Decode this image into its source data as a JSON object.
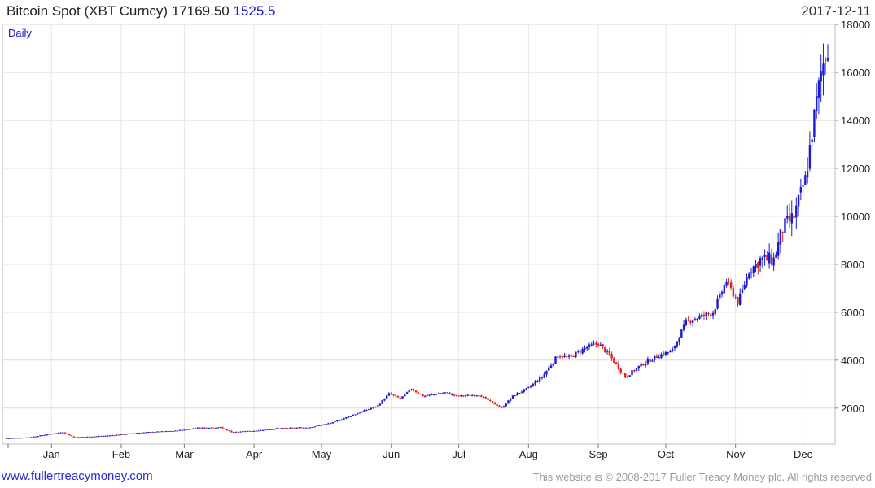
{
  "header": {
    "title": "Bitcoin Spot (XBT Curncy)",
    "price": "17169.50",
    "change": "1525.5",
    "date": "2017-12-11"
  },
  "footer": {
    "site": "www.fullertreacymoney.com",
    "copyright": "This website is © 2008-2017 Fuller Treacy Money plc. All rights reserved"
  },
  "colors": {
    "up": "#1a1ad0",
    "down": "#e02020",
    "grid": "#d9d9d9"
  },
  "chart_data": {
    "type": "candlestick",
    "period_label": "Daily",
    "x_labels": [
      "Jan",
      "Feb",
      "Mar",
      "Apr",
      "May",
      "Jun",
      "Jul",
      "Aug",
      "Sep",
      "Oct",
      "Nov",
      "Dec"
    ],
    "y_ticks": [
      2000,
      4000,
      6000,
      8000,
      10000,
      12000,
      14000,
      16000,
      18000
    ],
    "ylim": [
      500,
      18000
    ],
    "y_axis_side": "right",
    "grid": true,
    "series": [
      {
        "date_range": [
          "2016-12-12",
          "2017-12-11"
        ],
        "approx_close_path": [
          [
            0,
            740
          ],
          [
            10,
            780
          ],
          [
            20,
            930
          ],
          [
            25,
            1000
          ],
          [
            30,
            780
          ],
          [
            35,
            800
          ],
          [
            45,
            850
          ],
          [
            60,
            980
          ],
          [
            75,
            1050
          ],
          [
            85,
            1180
          ],
          [
            95,
            1200
          ],
          [
            100,
            1000
          ],
          [
            110,
            1050
          ],
          [
            120,
            1150
          ],
          [
            135,
            1200
          ],
          [
            145,
            1400
          ],
          [
            155,
            1750
          ],
          [
            165,
            2100
          ],
          [
            170,
            2600
          ],
          [
            175,
            2400
          ],
          [
            180,
            2800
          ],
          [
            185,
            2500
          ],
          [
            195,
            2650
          ],
          [
            200,
            2500
          ],
          [
            210,
            2550
          ],
          [
            220,
            2000
          ],
          [
            225,
            2500
          ],
          [
            232,
            2850
          ],
          [
            238,
            3300
          ],
          [
            245,
            4200
          ],
          [
            250,
            4100
          ],
          [
            257,
            4500
          ],
          [
            263,
            4700
          ],
          [
            268,
            4200
          ],
          [
            275,
            3300
          ],
          [
            282,
            3800
          ],
          [
            290,
            4200
          ],
          [
            296,
            4400
          ],
          [
            302,
            5600
          ],
          [
            308,
            5800
          ],
          [
            314,
            6000
          ],
          [
            320,
            7300
          ],
          [
            325,
            6400
          ],
          [
            330,
            7700
          ],
          [
            335,
            8200
          ],
          [
            341,
            8200
          ],
          [
            345,
            9500
          ],
          [
            350,
            10000
          ],
          [
            355,
            11500
          ],
          [
            358,
            13500
          ],
          [
            362,
            16000
          ],
          [
            365,
            17169.5
          ]
        ]
      }
    ]
  }
}
